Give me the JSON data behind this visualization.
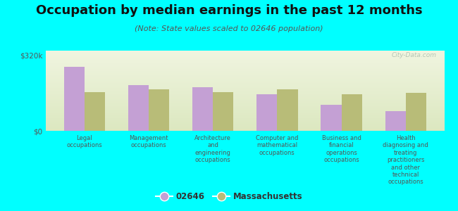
{
  "title": "Occupation by median earnings in the past 12 months",
  "subtitle": "(Note: State values scaled to 02646 population)",
  "background_color": "#00FFFF",
  "plot_bg_top": "#e8eed8",
  "plot_bg_bottom": "#f5f8ec",
  "categories": [
    "Legal\noccupations",
    "Management\noccupations",
    "Architecture\nand\nengineering\noccupations",
    "Computer and\nmathematical\noccupations",
    "Business and\nfinancial\noperations\noccupations",
    "Health\ndiagnosing and\ntreating\npractitioners\nand other\ntechnical\noccupations"
  ],
  "values_02646": [
    270000,
    195000,
    185000,
    155000,
    110000,
    85000
  ],
  "values_ma": [
    165000,
    175000,
    165000,
    175000,
    155000,
    160000
  ],
  "color_02646": "#c4a0d4",
  "color_ma": "#b8bc78",
  "ylim": [
    0,
    340000
  ],
  "yticks": [
    0,
    320000
  ],
  "ytick_labels": [
    "$0",
    "$320k"
  ],
  "legend_02646": "02646",
  "legend_ma": "Massachusetts",
  "watermark": "City-Data.com",
  "title_fontsize": 13,
  "subtitle_fontsize": 8
}
